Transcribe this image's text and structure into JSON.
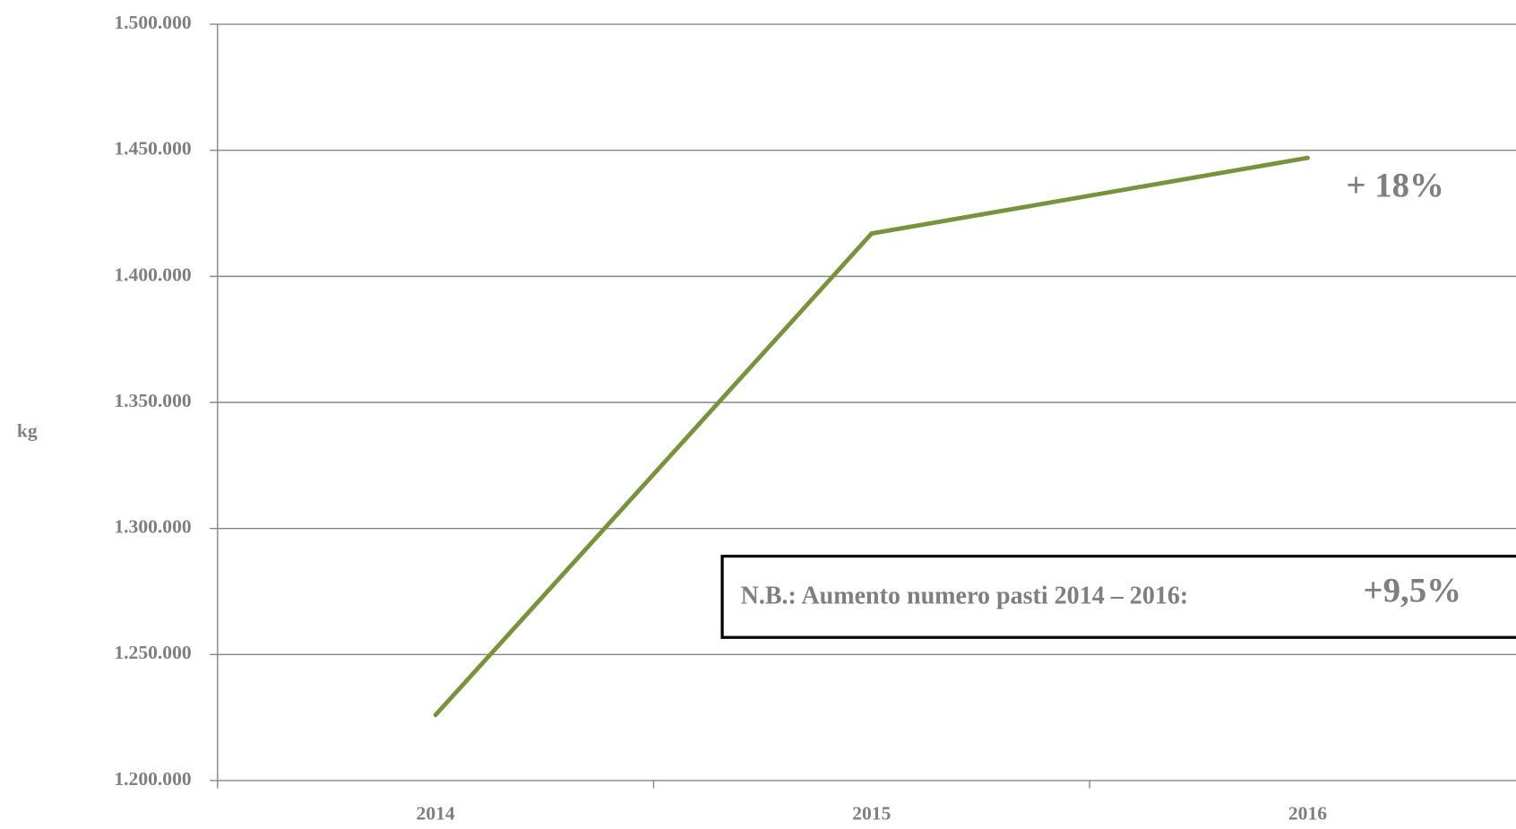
{
  "chart_data": {
    "type": "line",
    "y_label": "kg",
    "categories": [
      "2014",
      "2015",
      "2016"
    ],
    "series": [
      {
        "name": "kg",
        "color": "#77933c",
        "values": [
          1226000,
          1417000,
          1447000
        ]
      }
    ],
    "ylim": [
      1200000,
      1500000
    ],
    "yticks": [
      {
        "value": 1200000,
        "label": "1.200.000"
      },
      {
        "value": 1250000,
        "label": "1.250.000"
      },
      {
        "value": 1300000,
        "label": "1.300.000"
      },
      {
        "value": 1350000,
        "label": "1.350.000"
      },
      {
        "value": 1400000,
        "label": "1.400.000"
      },
      {
        "value": 1450000,
        "label": "1.450.000"
      },
      {
        "value": 1500000,
        "label": "1.500.000"
      }
    ],
    "grid": true,
    "annotations": [
      "+ 18%",
      "N.B.: Aumento numero pasti 2014 – 2016:",
      "+9,5%"
    ]
  }
}
